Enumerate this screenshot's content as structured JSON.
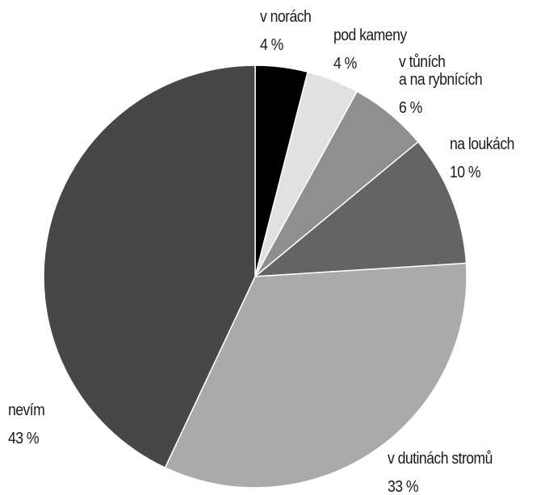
{
  "chart_data": {
    "type": "pie",
    "categories": [
      "v norách",
      "pod kameny",
      "v tůních\na na rybnících",
      "na loukách",
      "v dutinách stromů",
      "nevím"
    ],
    "values": [
      4,
      4,
      6,
      10,
      33,
      43
    ],
    "value_labels": [
      "4 %",
      "4 %",
      "6 %",
      "10 %",
      "33 %",
      "43 %"
    ],
    "colors": [
      "#000000",
      "#e1e1e2",
      "#8f8f91",
      "#646466",
      "#aaaaac",
      "#474749"
    ]
  }
}
